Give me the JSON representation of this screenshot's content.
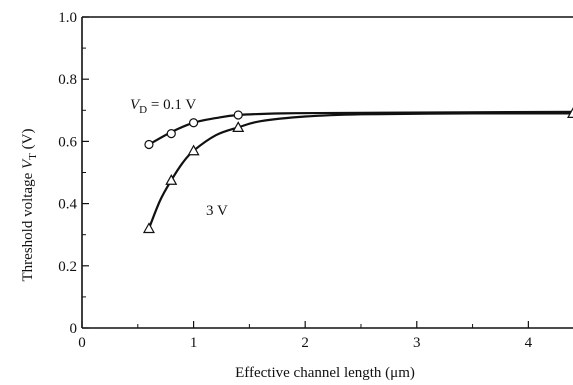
{
  "chart_data": {
    "type": "scatter",
    "title": "",
    "xlabel": "Effective channel length (μm)",
    "ylabel_parts": {
      "prefix": "Threshold voltage ",
      "symbol": "V",
      "subscript": "T",
      "suffix": " (V)"
    },
    "xlim": [
      0,
      4.4
    ],
    "ylim": [
      0,
      1.0
    ],
    "x_ticks": [
      0,
      1,
      2,
      3,
      4
    ],
    "y_ticks": [
      0,
      0.2,
      0.4,
      0.6,
      0.8,
      1.0
    ],
    "x_tick_labels": [
      "0",
      "1",
      "2",
      "3",
      "4"
    ],
    "y_tick_labels": [
      "0",
      "0.2",
      "0.4",
      "0.6",
      "0.8",
      "1.0"
    ],
    "grid": false,
    "legend": "none",
    "series": [
      {
        "marker": "circle",
        "label_parts": {
          "symbol": "V",
          "subscript": "D",
          "rest": " = 0.1 V"
        },
        "points": [
          [
            0.6,
            0.59
          ],
          [
            0.8,
            0.625
          ],
          [
            1.0,
            0.66
          ],
          [
            1.4,
            0.685
          ]
        ],
        "curve": [
          [
            0.6,
            0.59
          ],
          [
            0.8,
            0.63
          ],
          [
            1.0,
            0.66
          ],
          [
            1.2,
            0.675
          ],
          [
            1.4,
            0.685
          ],
          [
            1.8,
            0.69
          ],
          [
            2.5,
            0.692
          ],
          [
            4.4,
            0.695
          ]
        ]
      },
      {
        "marker": "triangle",
        "label_parts": {
          "symbol": "",
          "subscript": "",
          "rest": "3 V"
        },
        "points": [
          [
            0.6,
            0.32
          ],
          [
            0.8,
            0.475
          ],
          [
            1.0,
            0.57
          ],
          [
            1.4,
            0.645
          ],
          [
            4.4,
            0.69
          ]
        ],
        "curve": [
          [
            0.6,
            0.32
          ],
          [
            0.7,
            0.41
          ],
          [
            0.8,
            0.475
          ],
          [
            0.9,
            0.53
          ],
          [
            1.0,
            0.57
          ],
          [
            1.2,
            0.62
          ],
          [
            1.4,
            0.645
          ],
          [
            1.6,
            0.665
          ],
          [
            2.0,
            0.68
          ],
          [
            2.5,
            0.687
          ],
          [
            3.5,
            0.69
          ],
          [
            4.4,
            0.69
          ]
        ]
      }
    ]
  }
}
